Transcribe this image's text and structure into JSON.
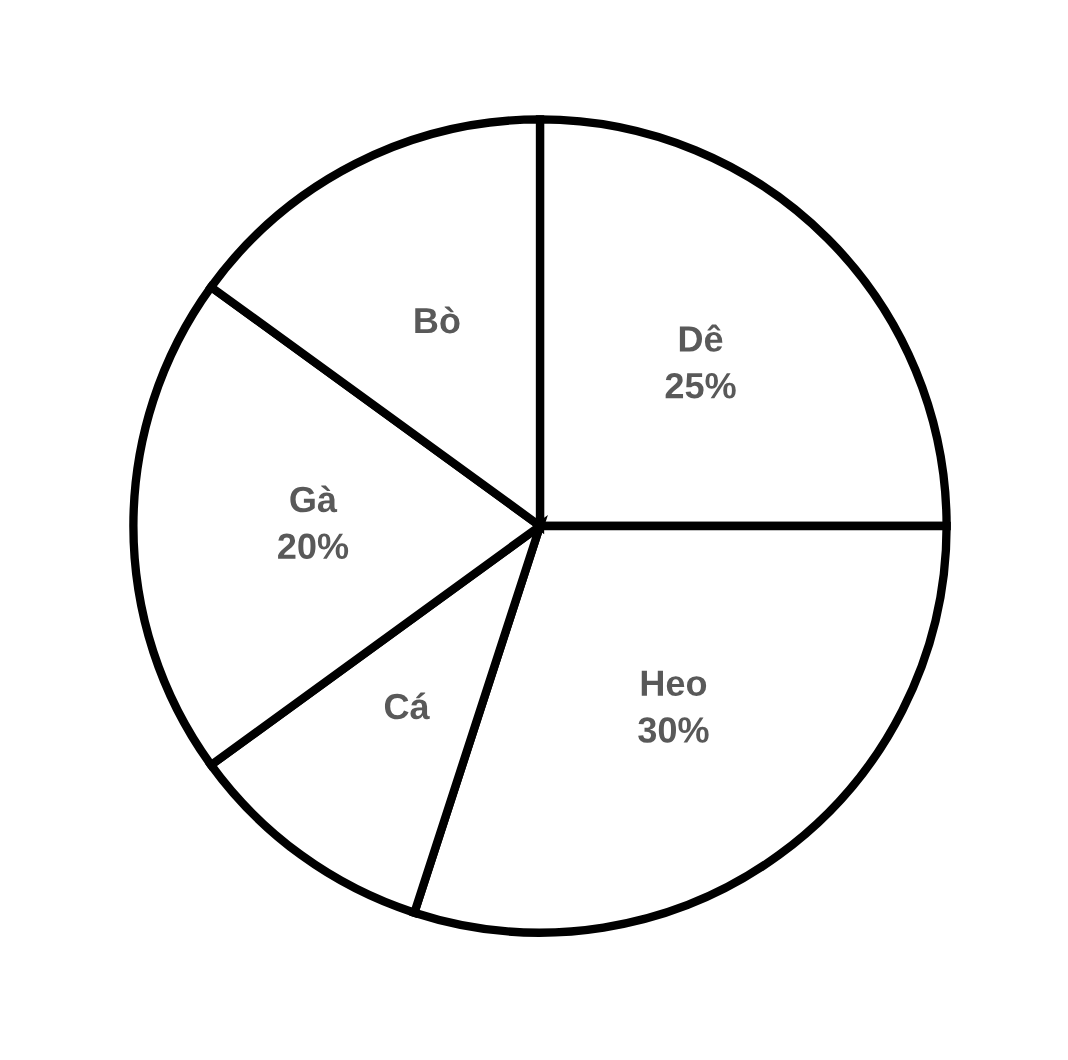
{
  "chart_data": {
    "type": "pie",
    "categories": [
      "Dê",
      "Heo",
      "Cá",
      "Gà",
      "Bò"
    ],
    "values": [
      25,
      30,
      10,
      20,
      15
    ],
    "colors": [
      "#ffffff",
      "#ffffff",
      "#ffffff",
      "#ffffff",
      "#ffffff"
    ],
    "value_labels": [
      "25%",
      "30%",
      null,
      "20%",
      null
    ],
    "legend": false
  }
}
